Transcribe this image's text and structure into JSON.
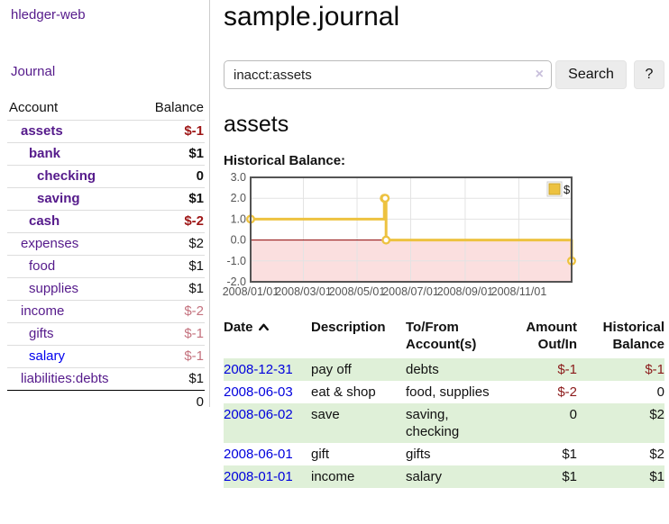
{
  "app": {
    "brand": "hledger-web",
    "nav_journal": "Journal"
  },
  "sidebar": {
    "header": {
      "account": "Account",
      "balance": "Balance"
    },
    "accounts": [
      {
        "name": "assets",
        "level": 0,
        "bold": true,
        "balance": "$-1",
        "balance_style": "neg"
      },
      {
        "name": "bank",
        "level": 1,
        "bold": true,
        "balance": "$1",
        "balance_style": "pos"
      },
      {
        "name": "checking",
        "level": 2,
        "bold": true,
        "balance": "0",
        "balance_style": "pos"
      },
      {
        "name": "saving",
        "level": 2,
        "bold": true,
        "balance": "$1",
        "balance_style": "pos"
      },
      {
        "name": "cash",
        "level": 1,
        "bold": true,
        "balance": "$-2",
        "balance_style": "neg"
      },
      {
        "name": "expenses",
        "level": 0,
        "bold": false,
        "balance": "$2",
        "balance_style": "pos"
      },
      {
        "name": "food",
        "level": 1,
        "bold": false,
        "balance": "$1",
        "balance_style": "pos"
      },
      {
        "name": "supplies",
        "level": 1,
        "bold": false,
        "balance": "$1",
        "balance_style": "pos"
      },
      {
        "name": "income",
        "level": 0,
        "bold": false,
        "balance": "$-2",
        "balance_style": "neg-dim"
      },
      {
        "name": "gifts",
        "level": 1,
        "bold": false,
        "balance": "$-1",
        "balance_style": "neg-dim"
      },
      {
        "name": "salary",
        "level": 1,
        "bold": false,
        "link_style": "blue",
        "balance": "$-1",
        "balance_style": "neg-dim"
      },
      {
        "name": "liabilities:debts",
        "level": 0,
        "bold": false,
        "balance": "$1",
        "balance_style": "pos"
      }
    ],
    "total": "0"
  },
  "main": {
    "title": "sample.journal",
    "search": {
      "value": "inacct:assets",
      "clear_icon": "×",
      "button_label": "Search",
      "help_label": "?"
    },
    "account_title": "assets",
    "chart_label": "Historical Balance:"
  },
  "chart_data": {
    "type": "line",
    "title": "Historical Balance",
    "step": true,
    "series": [
      {
        "name": "$",
        "color": "#edc240",
        "points": [
          [
            "2008-01-01",
            1
          ],
          [
            "2008-06-01",
            2
          ],
          [
            "2008-06-02",
            2
          ],
          [
            "2008-06-03",
            0
          ],
          [
            "2008-12-31",
            -1
          ]
        ]
      }
    ],
    "x_ticks": [
      "2008/01/01",
      "2008/03/01",
      "2008/05/01",
      "2008/07/01",
      "2008/09/01",
      "2008/11/01"
    ],
    "y_ticks": [
      "3.0",
      "2.0",
      "1.0",
      "0.0",
      "-1.0",
      "-2.0"
    ],
    "ylim": [
      -2,
      3
    ],
    "xlim_days": [
      0,
      365
    ],
    "legend": "$",
    "legend_position": "top-right",
    "grid": true,
    "grid_color": "#e3e3e3",
    "border_color": "#545454",
    "axis_label_color": "#545454",
    "negative_region_fill": "#fbdfdf",
    "zero_line_color": "#8b0000"
  },
  "register": {
    "columns": [
      "Date",
      "Description",
      "To/From Account(s)",
      "Amount Out/In",
      "Historical Balance"
    ],
    "rows": [
      {
        "date": "2008-12-31",
        "description": "pay off",
        "accounts": "debts",
        "amount": "$-1",
        "amount_neg": true,
        "balance": "$-1",
        "balance_neg": true
      },
      {
        "date": "2008-06-03",
        "description": "eat & shop",
        "accounts": "food, supplies",
        "amount": "$-2",
        "amount_neg": true,
        "balance": "0",
        "balance_neg": false
      },
      {
        "date": "2008-06-02",
        "description": "save",
        "accounts": "saving, checking",
        "amount": "0",
        "amount_neg": false,
        "balance": "$2",
        "balance_neg": false
      },
      {
        "date": "2008-06-01",
        "description": "gift",
        "accounts": "gifts",
        "amount": "$1",
        "amount_neg": false,
        "balance": "$2",
        "balance_neg": false
      },
      {
        "date": "2008-01-01",
        "description": "income",
        "accounts": "salary",
        "amount": "$1",
        "amount_neg": false,
        "balance": "$1",
        "balance_neg": false
      }
    ]
  }
}
